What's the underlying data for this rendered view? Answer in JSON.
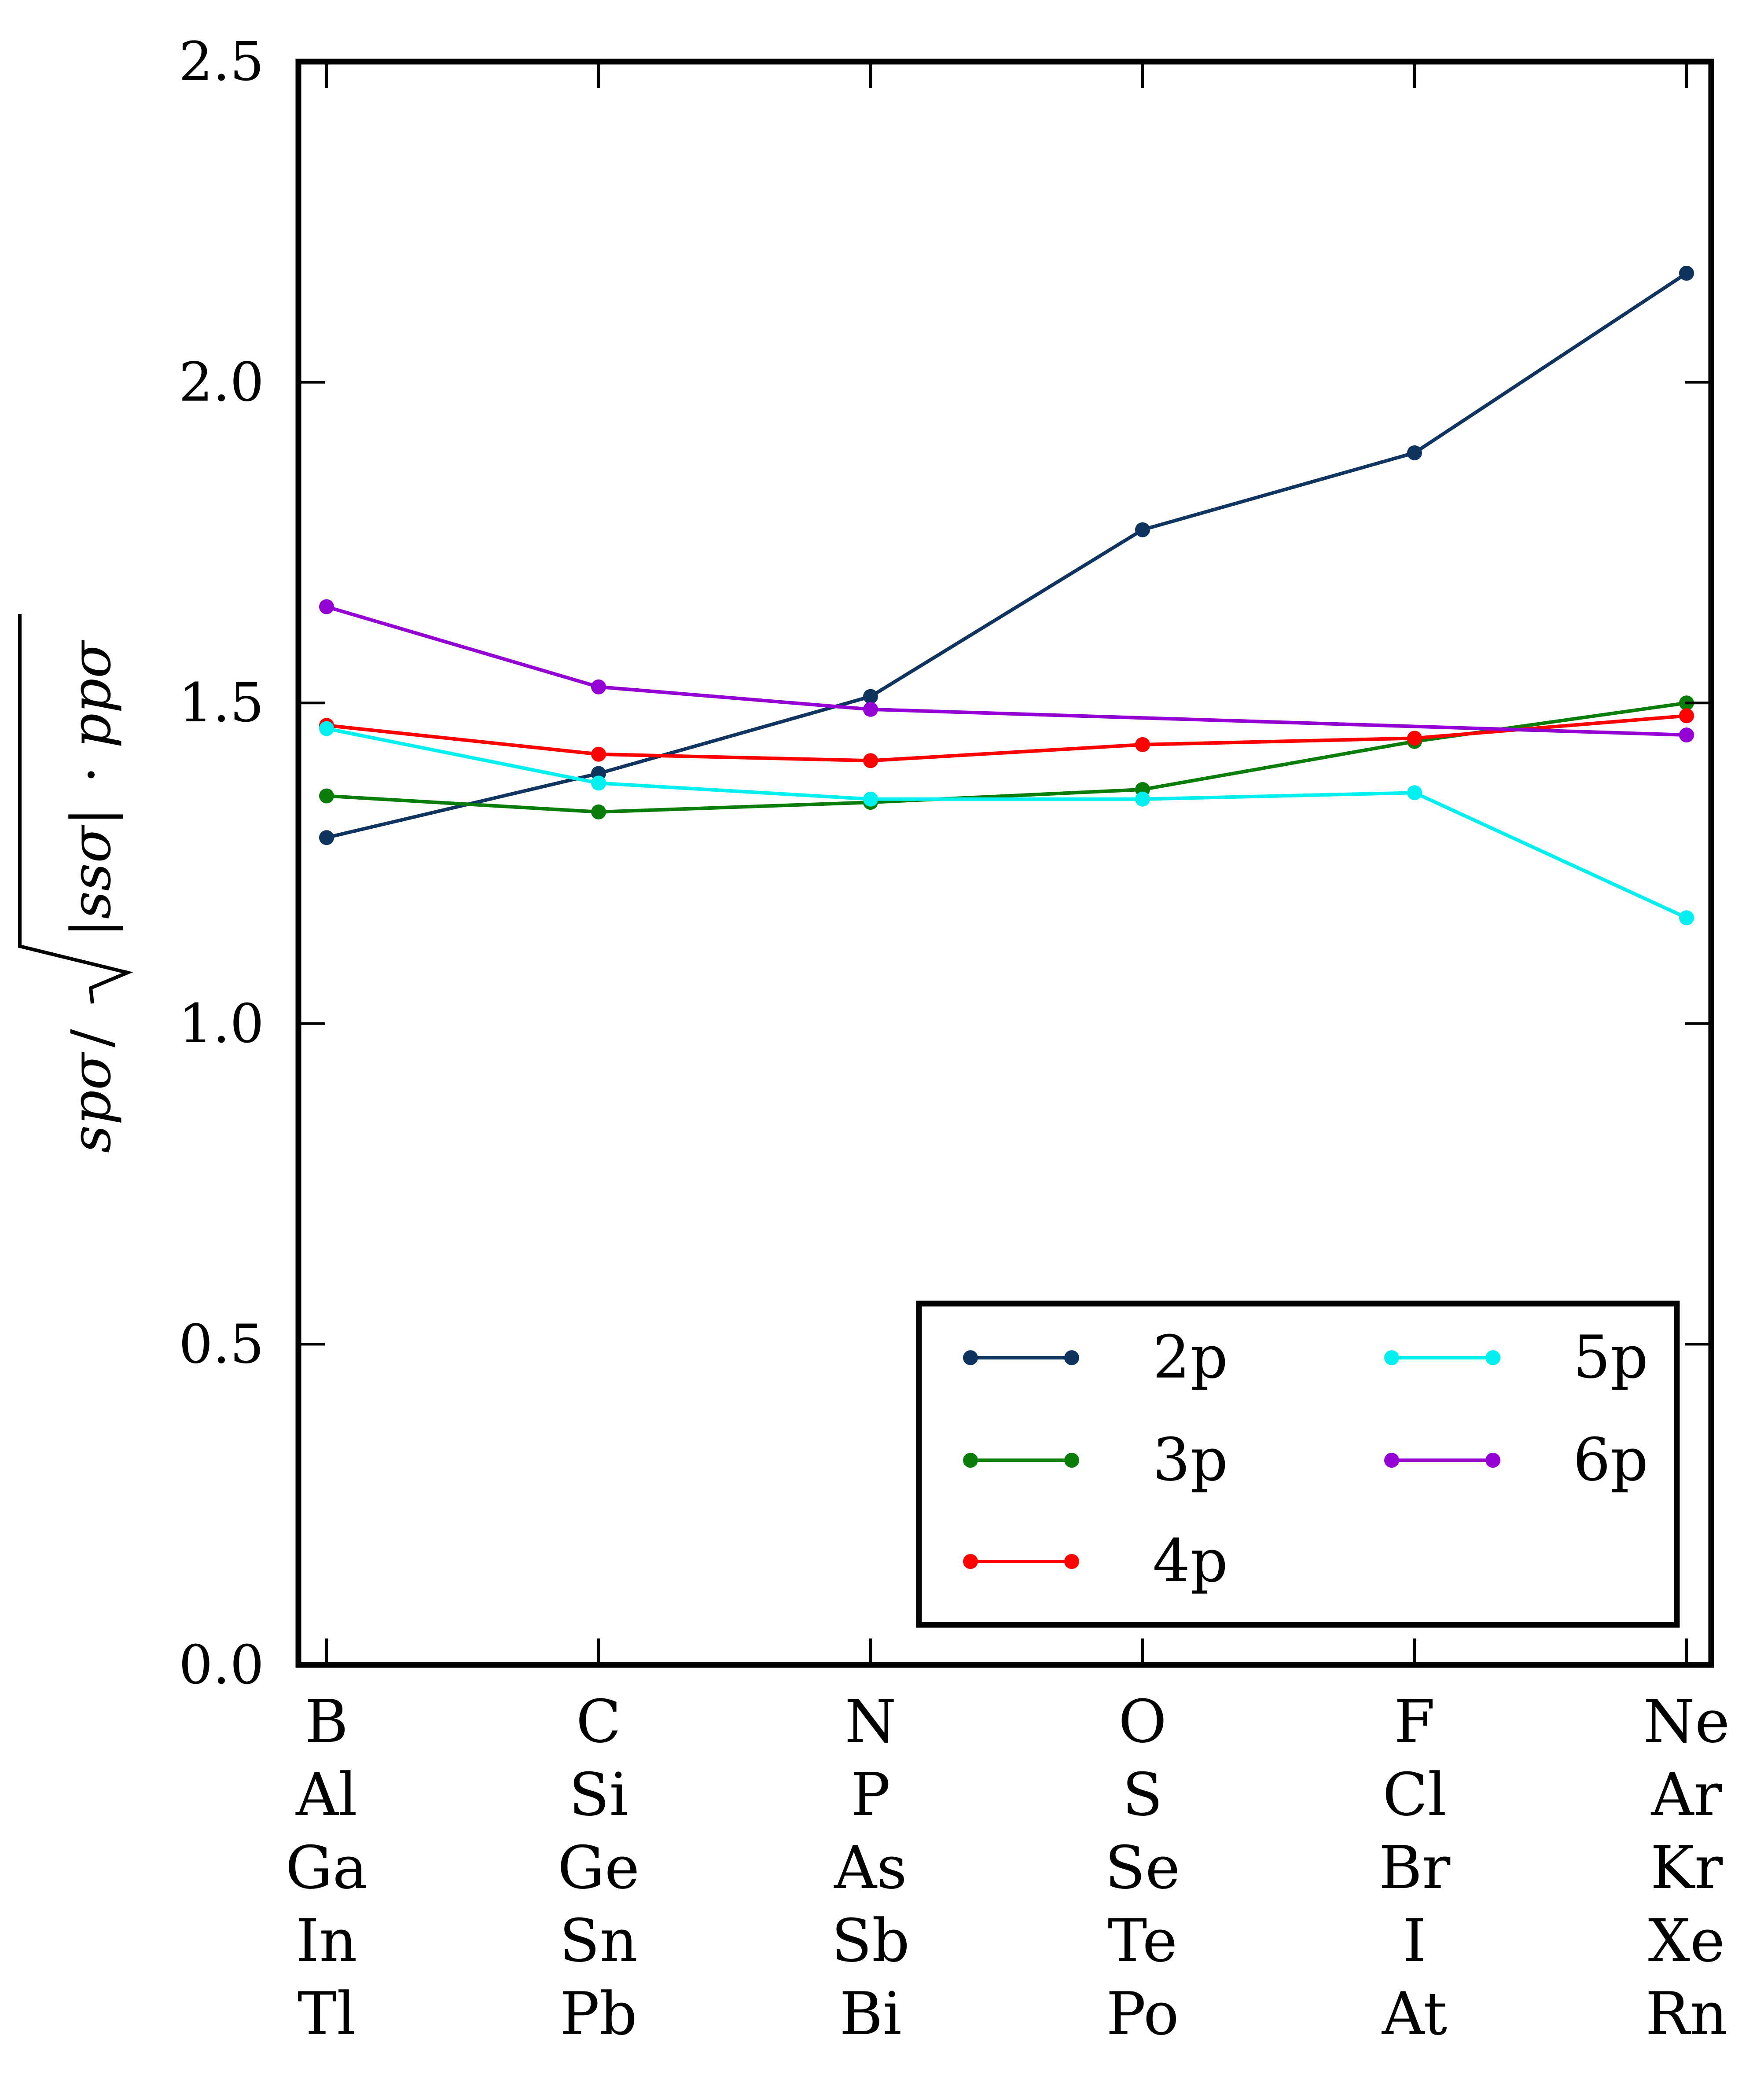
{
  "chart_data": {
    "type": "line",
    "title": "",
    "ylabel": "spσ / √(|ssσ| · ppσ)",
    "ylabel_parts": {
      "num": "spσ",
      "slash": "/",
      "rad": "|ssσ|",
      "dot": "·",
      "rest": "ppσ"
    },
    "ylim": [
      0.0,
      2.5
    ],
    "yticks": [
      "0.0",
      "0.5",
      "1.0",
      "1.5",
      "2.0",
      "2.5"
    ],
    "ytick_values": [
      0.0,
      0.5,
      1.0,
      1.5,
      2.0,
      2.5
    ],
    "categories": [
      [
        "B",
        "Al",
        "Ga",
        "In",
        "Tl"
      ],
      [
        "C",
        "Si",
        "Ge",
        "Sn",
        "Pb"
      ],
      [
        "N",
        "P",
        "As",
        "Sb",
        "Bi"
      ],
      [
        "O",
        "S",
        "Se",
        "Te",
        "Po"
      ],
      [
        "F",
        "Cl",
        "Br",
        "I",
        "At"
      ],
      [
        "Ne",
        "Ar",
        "Kr",
        "Xe",
        "Rn"
      ]
    ],
    "series": [
      {
        "name": "2p",
        "color": "#0f3460",
        "values": [
          1.29,
          1.39,
          1.51,
          1.77,
          1.89,
          2.17
        ]
      },
      {
        "name": "3p",
        "color": "#0b7d0b",
        "values": [
          1.355,
          1.33,
          1.345,
          1.365,
          1.44,
          1.5
        ]
      },
      {
        "name": "4p",
        "color": "#ff0000",
        "values": [
          1.465,
          1.42,
          1.41,
          1.435,
          1.445,
          1.48
        ]
      },
      {
        "name": "5p",
        "color": "#00f0f0",
        "values": [
          1.46,
          1.375,
          1.35,
          1.35,
          1.36,
          1.165
        ]
      },
      {
        "name": "6p",
        "color": "#9400d3",
        "values": [
          1.65,
          1.525,
          1.49,
          null,
          null,
          1.45
        ]
      }
    ],
    "legend": {
      "position": "lower-right",
      "columns": 2
    }
  }
}
